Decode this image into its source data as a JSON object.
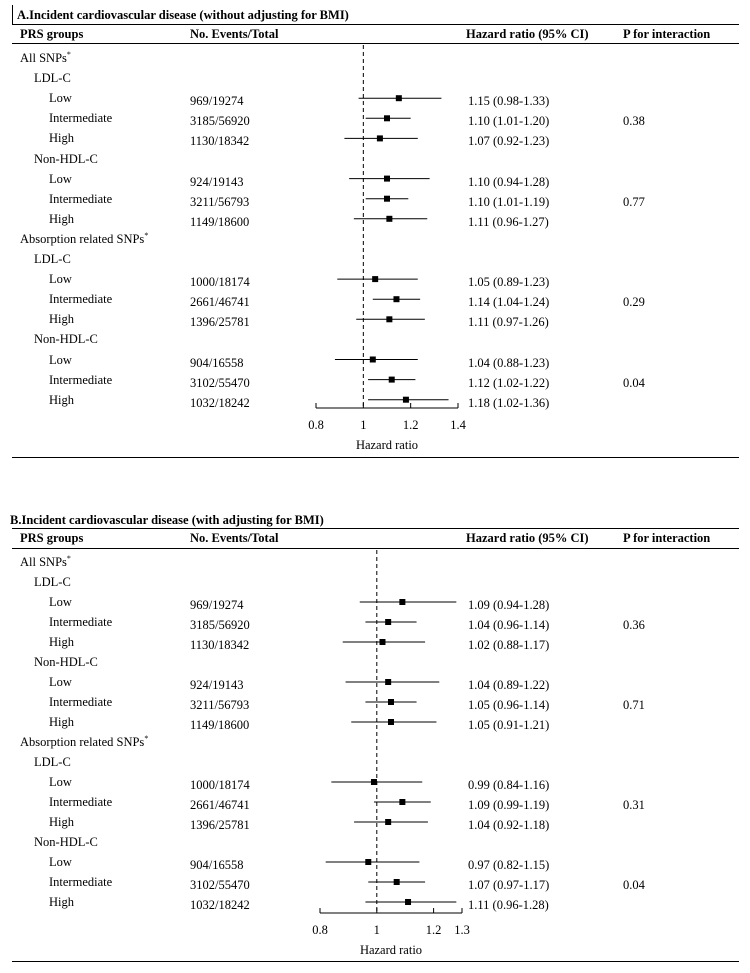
{
  "headers": {
    "prs_groups": "PRS groups",
    "events": "No. Events/Total",
    "hr_ci": "Hazard ratio (95% CI)",
    "p_interaction": "P for interaction"
  },
  "panels": [
    {
      "title": "A.Incident cardiovascular disease (without adjusting for BMI)",
      "axis": {
        "label": "Hazard ratio",
        "ticks": [
          0.8,
          1,
          1.2,
          1.4
        ],
        "tick_labels": [
          "0.8",
          "1",
          "1.2",
          "1.4"
        ],
        "range": [
          0.8,
          1.4
        ],
        "reference": 1
      },
      "rows": [
        {
          "kind": "section",
          "label": "All SNPs",
          "star": "*"
        },
        {
          "kind": "subgroup",
          "label": "LDL-C"
        },
        {
          "kind": "data",
          "label": "Low",
          "events": "969/19274",
          "hr": 1.15,
          "lo": 0.98,
          "hi": 1.33,
          "ci_text": "1.15 (0.98-1.33)",
          "p": ""
        },
        {
          "kind": "data",
          "label": "Intermediate",
          "events": "3185/56920",
          "hr": 1.1,
          "lo": 1.01,
          "hi": 1.2,
          "ci_text": "1.10 (1.01-1.20)",
          "p": "0.38"
        },
        {
          "kind": "data",
          "label": "High",
          "events": "1130/18342",
          "hr": 1.07,
          "lo": 0.92,
          "hi": 1.23,
          "ci_text": "1.07 (0.92-1.23)",
          "p": ""
        },
        {
          "kind": "subgroup",
          "label": "Non-HDL-C"
        },
        {
          "kind": "data",
          "label": "Low",
          "events": "924/19143",
          "hr": 1.1,
          "lo": 0.94,
          "hi": 1.28,
          "ci_text": "1.10 (0.94-1.28)",
          "p": ""
        },
        {
          "kind": "data",
          "label": "Intermediate",
          "events": "3211/56793",
          "hr": 1.1,
          "lo": 1.01,
          "hi": 1.19,
          "ci_text": "1.10 (1.01-1.19)",
          "p": "0.77"
        },
        {
          "kind": "data",
          "label": "High",
          "events": "1149/18600",
          "hr": 1.11,
          "lo": 0.96,
          "hi": 1.27,
          "ci_text": "1.11 (0.96-1.27)",
          "p": ""
        },
        {
          "kind": "section",
          "label": "Absorption related SNPs",
          "star": "*"
        },
        {
          "kind": "subgroup",
          "label": "LDL-C"
        },
        {
          "kind": "data",
          "label": "Low",
          "events": "1000/18174",
          "hr": 1.05,
          "lo": 0.89,
          "hi": 1.23,
          "ci_text": "1.05 (0.89-1.23)",
          "p": ""
        },
        {
          "kind": "data",
          "label": "Intermediate",
          "events": "2661/46741",
          "hr": 1.14,
          "lo": 1.04,
          "hi": 1.24,
          "ci_text": "1.14 (1.04-1.24)",
          "p": "0.29"
        },
        {
          "kind": "data",
          "label": "High",
          "events": "1396/25781",
          "hr": 1.11,
          "lo": 0.97,
          "hi": 1.26,
          "ci_text": "1.11 (0.97-1.26)",
          "p": ""
        },
        {
          "kind": "subgroup",
          "label": "Non-HDL-C"
        },
        {
          "kind": "data",
          "label": "Low",
          "events": "904/16558",
          "hr": 1.04,
          "lo": 0.88,
          "hi": 1.23,
          "ci_text": "1.04 (0.88-1.23)",
          "p": ""
        },
        {
          "kind": "data",
          "label": "Intermediate",
          "events": "3102/55470",
          "hr": 1.12,
          "lo": 1.02,
          "hi": 1.22,
          "ci_text": "1.12 (1.02-1.22)",
          "p": "0.04"
        },
        {
          "kind": "data",
          "label": "High",
          "events": "1032/18242",
          "hr": 1.18,
          "lo": 1.02,
          "hi": 1.36,
          "ci_text": "1.18 (1.02-1.36)",
          "p": ""
        }
      ]
    },
    {
      "title": "B.Incident cardiovascular disease (with adjusting for BMI)",
      "axis": {
        "label": "Hazard ratio",
        "ticks": [
          0.8,
          1,
          1.2,
          1.3
        ],
        "tick_labels": [
          "0.8",
          "1",
          "1.2",
          "1.3"
        ],
        "range": [
          0.8,
          1.3
        ],
        "reference": 1
      },
      "rows": [
        {
          "kind": "section",
          "label": "All SNPs",
          "star": "*"
        },
        {
          "kind": "subgroup",
          "label": "LDL-C"
        },
        {
          "kind": "data",
          "label": "Low",
          "events": "969/19274",
          "hr": 1.09,
          "lo": 0.94,
          "hi": 1.28,
          "ci_text": "1.09 (0.94-1.28)",
          "p": ""
        },
        {
          "kind": "data",
          "label": "Intermediate",
          "events": "3185/56920",
          "hr": 1.04,
          "lo": 0.96,
          "hi": 1.14,
          "ci_text": "1.04 (0.96-1.14)",
          "p": "0.36"
        },
        {
          "kind": "data",
          "label": "High",
          "events": "1130/18342",
          "hr": 1.02,
          "lo": 0.88,
          "hi": 1.17,
          "ci_text": "1.02 (0.88-1.17)",
          "p": ""
        },
        {
          "kind": "subgroup",
          "label": "Non-HDL-C"
        },
        {
          "kind": "data",
          "label": "Low",
          "events": "924/19143",
          "hr": 1.04,
          "lo": 0.89,
          "hi": 1.22,
          "ci_text": "1.04 (0.89-1.22)",
          "p": ""
        },
        {
          "kind": "data",
          "label": "Intermediate",
          "events": "3211/56793",
          "hr": 1.05,
          "lo": 0.96,
          "hi": 1.14,
          "ci_text": "1.05 (0.96-1.14)",
          "p": "0.71"
        },
        {
          "kind": "data",
          "label": "High",
          "events": "1149/18600",
          "hr": 1.05,
          "lo": 0.91,
          "hi": 1.21,
          "ci_text": "1.05 (0.91-1.21)",
          "p": ""
        },
        {
          "kind": "section",
          "label": "Absorption related SNPs",
          "star": "*"
        },
        {
          "kind": "subgroup",
          "label": "LDL-C"
        },
        {
          "kind": "data",
          "label": "Low",
          "events": "1000/18174",
          "hr": 0.99,
          "lo": 0.84,
          "hi": 1.16,
          "ci_text": "0.99 (0.84-1.16)",
          "p": ""
        },
        {
          "kind": "data",
          "label": "Intermediate",
          "events": "2661/46741",
          "hr": 1.09,
          "lo": 0.99,
          "hi": 1.19,
          "ci_text": "1.09 (0.99-1.19)",
          "p": "0.31"
        },
        {
          "kind": "data",
          "label": "High",
          "events": "1396/25781",
          "hr": 1.04,
          "lo": 0.92,
          "hi": 1.18,
          "ci_text": "1.04 (0.92-1.18)",
          "p": ""
        },
        {
          "kind": "subgroup",
          "label": "Non-HDL-C"
        },
        {
          "kind": "data",
          "label": "Low",
          "events": "904/16558",
          "hr": 0.97,
          "lo": 0.82,
          "hi": 1.15,
          "ci_text": "0.97 (0.82-1.15)",
          "p": ""
        },
        {
          "kind": "data",
          "label": "Intermediate",
          "events": "3102/55470",
          "hr": 1.07,
          "lo": 0.97,
          "hi": 1.17,
          "ci_text": "1.07 (0.97-1.17)",
          "p": "0.04"
        },
        {
          "kind": "data",
          "label": "High",
          "events": "1032/18242",
          "hr": 1.11,
          "lo": 0.96,
          "hi": 1.28,
          "ci_text": "1.11 (0.96-1.28)",
          "p": ""
        }
      ]
    }
  ],
  "chart_data": [
    {
      "type": "forest",
      "title": "A.Incident cardiovascular disease (without adjusting for BMI)",
      "xlabel": "Hazard ratio",
      "xlim": [
        0.8,
        1.4
      ],
      "reference_line": 1,
      "grid": false,
      "points": [
        {
          "group": "All SNPs / LDL-C / Low",
          "hr": 1.15,
          "ci": [
            0.98,
            1.33
          ]
        },
        {
          "group": "All SNPs / LDL-C / Intermediate",
          "hr": 1.1,
          "ci": [
            1.01,
            1.2
          ]
        },
        {
          "group": "All SNPs / LDL-C / High",
          "hr": 1.07,
          "ci": [
            0.92,
            1.23
          ]
        },
        {
          "group": "All SNPs / Non-HDL-C / Low",
          "hr": 1.1,
          "ci": [
            0.94,
            1.28
          ]
        },
        {
          "group": "All SNPs / Non-HDL-C / Intermediate",
          "hr": 1.1,
          "ci": [
            1.01,
            1.19
          ]
        },
        {
          "group": "All SNPs / Non-HDL-C / High",
          "hr": 1.11,
          "ci": [
            0.96,
            1.27
          ]
        },
        {
          "group": "Absorption related SNPs / LDL-C / Low",
          "hr": 1.05,
          "ci": [
            0.89,
            1.23
          ]
        },
        {
          "group": "Absorption related SNPs / LDL-C / Intermediate",
          "hr": 1.14,
          "ci": [
            1.04,
            1.24
          ]
        },
        {
          "group": "Absorption related SNPs / LDL-C / High",
          "hr": 1.11,
          "ci": [
            0.97,
            1.26
          ]
        },
        {
          "group": "Absorption related SNPs / Non-HDL-C / Low",
          "hr": 1.04,
          "ci": [
            0.88,
            1.23
          ]
        },
        {
          "group": "Absorption related SNPs / Non-HDL-C / Intermediate",
          "hr": 1.12,
          "ci": [
            1.02,
            1.22
          ]
        },
        {
          "group": "Absorption related SNPs / Non-HDL-C / High",
          "hr": 1.18,
          "ci": [
            1.02,
            1.36
          ]
        }
      ]
    },
    {
      "type": "forest",
      "title": "B.Incident cardiovascular disease (with adjusting for BMI)",
      "xlabel": "Hazard ratio",
      "xlim": [
        0.8,
        1.3
      ],
      "reference_line": 1,
      "grid": false,
      "points": [
        {
          "group": "All SNPs / LDL-C / Low",
          "hr": 1.09,
          "ci": [
            0.94,
            1.28
          ]
        },
        {
          "group": "All SNPs / LDL-C / Intermediate",
          "hr": 1.04,
          "ci": [
            0.96,
            1.14
          ]
        },
        {
          "group": "All SNPs / LDL-C / High",
          "hr": 1.02,
          "ci": [
            0.88,
            1.17
          ]
        },
        {
          "group": "All SNPs / Non-HDL-C / Low",
          "hr": 1.04,
          "ci": [
            0.89,
            1.22
          ]
        },
        {
          "group": "All SNPs / Non-HDL-C / Intermediate",
          "hr": 1.05,
          "ci": [
            0.96,
            1.14
          ]
        },
        {
          "group": "All SNPs / Non-HDL-C / High",
          "hr": 1.05,
          "ci": [
            0.91,
            1.21
          ]
        },
        {
          "group": "Absorption related SNPs / LDL-C / Low",
          "hr": 0.99,
          "ci": [
            0.84,
            1.16
          ]
        },
        {
          "group": "Absorption related SNPs / LDL-C / Intermediate",
          "hr": 1.09,
          "ci": [
            0.99,
            1.19
          ]
        },
        {
          "group": "Absorption related SNPs / LDL-C / High",
          "hr": 1.04,
          "ci": [
            0.92,
            1.18
          ]
        },
        {
          "group": "Absorption related SNPs / Non-HDL-C / Low",
          "hr": 0.97,
          "ci": [
            0.82,
            1.15
          ]
        },
        {
          "group": "Absorption related SNPs / Non-HDL-C / Intermediate",
          "hr": 1.07,
          "ci": [
            0.97,
            1.17
          ]
        },
        {
          "group": "Absorption related SNPs / Non-HDL-C / High",
          "hr": 1.11,
          "ci": [
            0.96,
            1.28
          ]
        }
      ]
    }
  ]
}
